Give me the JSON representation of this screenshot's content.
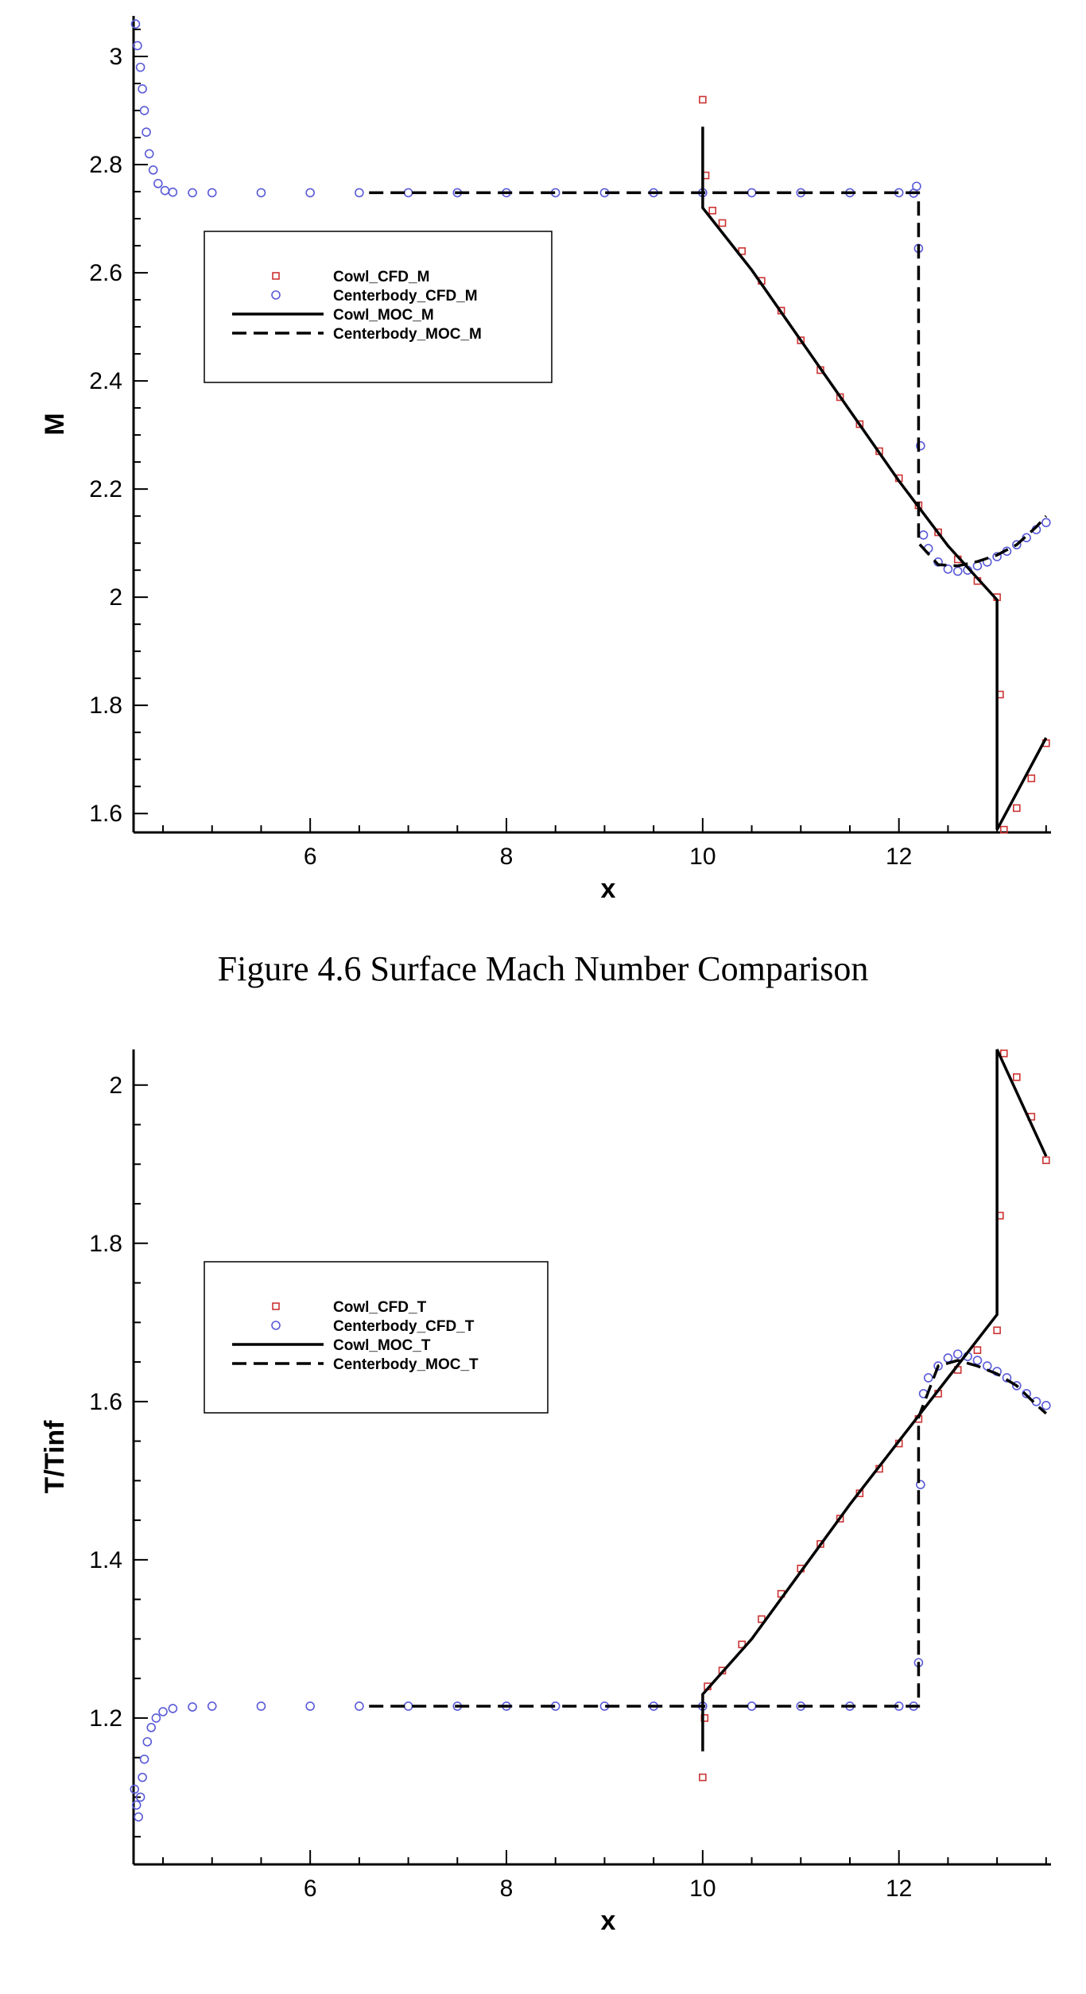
{
  "figure_caption": "Figure 4.6 Surface Mach Number Comparison",
  "colors": {
    "cowl_cfd": "#cc3333",
    "centerbody_cfd": "#5a5ad8",
    "moc": "#000000"
  },
  "chart_data": [
    {
      "type": "line",
      "xlabel": "x",
      "ylabel": "M",
      "xlim": [
        4.2,
        13.55
      ],
      "ylim": [
        1.565,
        3.075
      ],
      "xticks": [
        6,
        8,
        10,
        12
      ],
      "xtick_labels": [
        "6",
        "8",
        "10",
        "12"
      ],
      "yticks": [
        1.6,
        1.8,
        2,
        2.2,
        2.4,
        2.6,
        2.8,
        3
      ],
      "ytick_labels": [
        "1.6",
        "1.8",
        "2",
        "2.2",
        "2.4",
        "2.6",
        "2.8",
        "3"
      ],
      "legend_position": "upper-left",
      "legend": [
        "Cowl_CFD_M",
        "Centerbody_CFD_M",
        "Cowl_MOC_M",
        "Centerbody_MOC_M"
      ],
      "series": [
        {
          "name": "Cowl_CFD_M",
          "style": "square-markers",
          "color": "#cc3333",
          "points": [
            [
              10.0,
              2.92
            ],
            [
              10.03,
              2.78
            ],
            [
              10.1,
              2.715
            ],
            [
              10.2,
              2.692
            ],
            [
              10.4,
              2.64
            ],
            [
              10.6,
              2.585
            ],
            [
              10.8,
              2.53
            ],
            [
              11.0,
              2.475
            ],
            [
              11.2,
              2.42
            ],
            [
              11.4,
              2.37
            ],
            [
              11.6,
              2.32
            ],
            [
              11.8,
              2.27
            ],
            [
              12.0,
              2.22
            ],
            [
              12.2,
              2.17
            ],
            [
              12.4,
              2.12
            ],
            [
              12.6,
              2.07
            ],
            [
              12.8,
              2.03
            ],
            [
              13.0,
              2.0
            ],
            [
              13.03,
              1.82
            ],
            [
              13.07,
              1.57
            ],
            [
              13.2,
              1.61
            ],
            [
              13.35,
              1.665
            ],
            [
              13.5,
              1.73
            ]
          ]
        },
        {
          "name": "Centerbody_CFD_M",
          "style": "circle-markers",
          "color": "#5a5ad8",
          "points": [
            [
              4.22,
              3.06
            ],
            [
              4.24,
              3.02
            ],
            [
              4.27,
              2.98
            ],
            [
              4.29,
              2.94
            ],
            [
              4.31,
              2.9
            ],
            [
              4.33,
              2.86
            ],
            [
              4.36,
              2.82
            ],
            [
              4.4,
              2.79
            ],
            [
              4.45,
              2.765
            ],
            [
              4.52,
              2.752
            ],
            [
              4.6,
              2.749
            ],
            [
              4.8,
              2.748
            ],
            [
              5.0,
              2.748
            ],
            [
              5.5,
              2.748
            ],
            [
              6.0,
              2.748
            ],
            [
              6.5,
              2.748
            ],
            [
              7.0,
              2.748
            ],
            [
              7.5,
              2.748
            ],
            [
              8.0,
              2.748
            ],
            [
              8.5,
              2.748
            ],
            [
              9.0,
              2.748
            ],
            [
              9.5,
              2.748
            ],
            [
              10.0,
              2.748
            ],
            [
              10.5,
              2.748
            ],
            [
              11.0,
              2.748
            ],
            [
              11.5,
              2.748
            ],
            [
              12.0,
              2.748
            ],
            [
              12.15,
              2.747
            ],
            [
              12.18,
              2.76
            ],
            [
              12.2,
              2.645
            ],
            [
              12.22,
              2.28
            ],
            [
              12.25,
              2.115
            ],
            [
              12.3,
              2.09
            ],
            [
              12.4,
              2.065
            ],
            [
              12.5,
              2.052
            ],
            [
              12.6,
              2.048
            ],
            [
              12.7,
              2.05
            ],
            [
              12.8,
              2.058
            ],
            [
              12.9,
              2.065
            ],
            [
              13.0,
              2.075
            ],
            [
              13.1,
              2.085
            ],
            [
              13.2,
              2.097
            ],
            [
              13.3,
              2.11
            ],
            [
              13.4,
              2.125
            ],
            [
              13.5,
              2.138
            ]
          ]
        },
        {
          "name": "Cowl_MOC_M",
          "style": "solid-line",
          "color": "#000000",
          "points": [
            [
              10.0,
              2.87
            ],
            [
              10.0,
              2.72
            ],
            [
              10.5,
              2.605
            ],
            [
              11.0,
              2.475
            ],
            [
              11.5,
              2.345
            ],
            [
              12.0,
              2.215
            ],
            [
              12.5,
              2.095
            ],
            [
              13.0,
              1.995
            ],
            [
              13.0,
              1.57
            ],
            [
              13.5,
              1.74
            ]
          ]
        },
        {
          "name": "Centerbody_MOC_M",
          "style": "dashed-line",
          "color": "#000000",
          "points": [
            [
              6.6,
              2.748
            ],
            [
              12.2,
              2.748
            ],
            [
              12.2,
              2.1
            ],
            [
              12.4,
              2.06
            ],
            [
              12.6,
              2.058
            ],
            [
              12.8,
              2.066
            ],
            [
              13.0,
              2.078
            ],
            [
              13.2,
              2.097
            ],
            [
              13.4,
              2.13
            ],
            [
              13.5,
              2.15
            ]
          ]
        }
      ]
    },
    {
      "type": "line",
      "xlabel": "x",
      "ylabel": "T/Tinf",
      "xlim": [
        4.2,
        13.55
      ],
      "ylim": [
        1.015,
        2.045
      ],
      "xticks": [
        6,
        8,
        10,
        12
      ],
      "xtick_labels": [
        "6",
        "8",
        "10",
        "12"
      ],
      "yticks": [
        1.2,
        1.4,
        1.6,
        1.8,
        2
      ],
      "ytick_labels": [
        "1.2",
        "1.4",
        "1.6",
        "1.8",
        "2"
      ],
      "legend_position": "upper-left",
      "legend": [
        "Cowl_CFD_T",
        "Centerbody_CFD_T",
        "Cowl_MOC_T",
        "Centerbody_MOC_T"
      ],
      "series": [
        {
          "name": "Cowl_CFD_T",
          "style": "square-markers",
          "color": "#cc3333",
          "points": [
            [
              10.0,
              1.125
            ],
            [
              10.02,
              1.2
            ],
            [
              10.05,
              1.24
            ],
            [
              10.2,
              1.26
            ],
            [
              10.4,
              1.293
            ],
            [
              10.6,
              1.325
            ],
            [
              10.8,
              1.357
            ],
            [
              11.0,
              1.389
            ],
            [
              11.2,
              1.42
            ],
            [
              11.4,
              1.452
            ],
            [
              11.6,
              1.484
            ],
            [
              11.8,
              1.515
            ],
            [
              12.0,
              1.547
            ],
            [
              12.2,
              1.578
            ],
            [
              12.4,
              1.61
            ],
            [
              12.6,
              1.64
            ],
            [
              12.8,
              1.665
            ],
            [
              13.0,
              1.69
            ],
            [
              13.03,
              1.835
            ],
            [
              13.07,
              2.04
            ],
            [
              13.2,
              2.01
            ],
            [
              13.35,
              1.96
            ],
            [
              13.5,
              1.905
            ]
          ]
        },
        {
          "name": "Centerbody_CFD_T",
          "style": "circle-markers",
          "color": "#5a5ad8",
          "points": [
            [
              4.21,
              1.11
            ],
            [
              4.23,
              1.09
            ],
            [
              4.25,
              1.075
            ],
            [
              4.27,
              1.1
            ],
            [
              4.29,
              1.125
            ],
            [
              4.31,
              1.148
            ],
            [
              4.34,
              1.17
            ],
            [
              4.38,
              1.188
            ],
            [
              4.43,
              1.2
            ],
            [
              4.5,
              1.208
            ],
            [
              4.6,
              1.212
            ],
            [
              4.8,
              1.214
            ],
            [
              5.0,
              1.215
            ],
            [
              5.5,
              1.215
            ],
            [
              6.0,
              1.215
            ],
            [
              6.5,
              1.215
            ],
            [
              7.0,
              1.215
            ],
            [
              7.5,
              1.215
            ],
            [
              8.0,
              1.215
            ],
            [
              8.5,
              1.215
            ],
            [
              9.0,
              1.215
            ],
            [
              9.5,
              1.215
            ],
            [
              10.0,
              1.215
            ],
            [
              10.5,
              1.215
            ],
            [
              11.0,
              1.215
            ],
            [
              11.5,
              1.215
            ],
            [
              12.0,
              1.215
            ],
            [
              12.15,
              1.215
            ],
            [
              12.2,
              1.27
            ],
            [
              12.22,
              1.495
            ],
            [
              12.25,
              1.61
            ],
            [
              12.3,
              1.63
            ],
            [
              12.4,
              1.645
            ],
            [
              12.5,
              1.655
            ],
            [
              12.6,
              1.66
            ],
            [
              12.7,
              1.657
            ],
            [
              12.8,
              1.652
            ],
            [
              12.9,
              1.645
            ],
            [
              13.0,
              1.638
            ],
            [
              13.1,
              1.63
            ],
            [
              13.2,
              1.62
            ],
            [
              13.3,
              1.61
            ],
            [
              13.4,
              1.6
            ],
            [
              13.5,
              1.595
            ]
          ]
        },
        {
          "name": "Cowl_MOC_T",
          "style": "solid-line",
          "color": "#000000",
          "points": [
            [
              10.0,
              1.158
            ],
            [
              10.0,
              1.23
            ],
            [
              10.5,
              1.3
            ],
            [
              11.0,
              1.385
            ],
            [
              11.5,
              1.47
            ],
            [
              12.0,
              1.55
            ],
            [
              12.5,
              1.63
            ],
            [
              13.0,
              1.71
            ],
            [
              13.0,
              2.045
            ],
            [
              13.5,
              1.91
            ]
          ]
        },
        {
          "name": "Centerbody_MOC_T",
          "style": "dashed-line",
          "color": "#000000",
          "points": [
            [
              6.6,
              1.215
            ],
            [
              12.2,
              1.215
            ],
            [
              12.2,
              1.58
            ],
            [
              12.4,
              1.645
            ],
            [
              12.6,
              1.652
            ],
            [
              12.8,
              1.645
            ],
            [
              13.0,
              1.635
            ],
            [
              13.2,
              1.62
            ],
            [
              13.4,
              1.596
            ],
            [
              13.5,
              1.585
            ]
          ]
        }
      ]
    }
  ]
}
